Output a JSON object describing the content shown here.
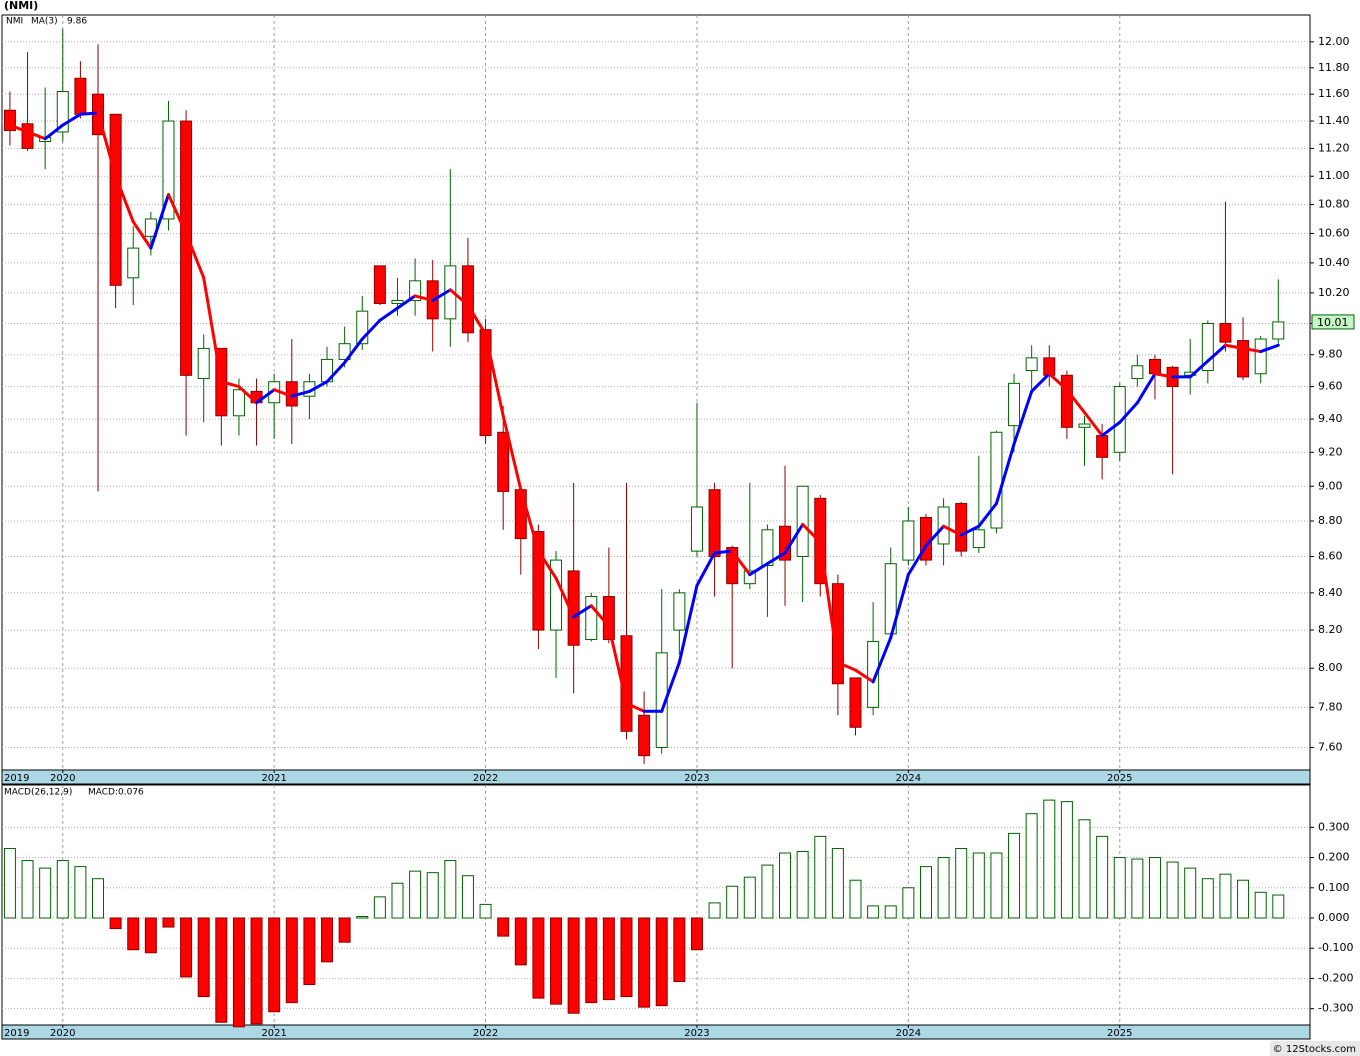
{
  "chart_data": [
    {
      "type": "candlestick",
      "title": "(NMI)",
      "log_scale": true,
      "grid": true,
      "series": [
        {
          "name": "NMI",
          "color": "#006400",
          "down_color": "#ff0000",
          "open": [
            11.48,
            11.38,
            11.25,
            11.32,
            11.72,
            11.6,
            11.45,
            10.3,
            10.58,
            10.7,
            11.4,
            9.65,
            9.84,
            9.42,
            9.57,
            9.5,
            9.63,
            9.54,
            9.63,
            9.77,
            9.87,
            10.38,
            10.13,
            10.15,
            10.28,
            10.03,
            10.38,
            9.96,
            9.32,
            8.98,
            8.74,
            8.2,
            8.52,
            8.15,
            8.38,
            8.17,
            7.76,
            7.6,
            8.2,
            8.63,
            8.98,
            8.65,
            8.45,
            8.55,
            8.77,
            8.6,
            8.93,
            8.45,
            7.95,
            7.8,
            8.18,
            8.58,
            8.82,
            8.67,
            8.9,
            8.65,
            8.76,
            9.36,
            9.7,
            9.78,
            9.67,
            9.35,
            9.3,
            9.2,
            9.65,
            9.77,
            9.72,
            9.67,
            9.7,
            10.0,
            9.89,
            9.68,
            9.9
          ],
          "high": [
            11.62,
            11.92,
            11.65,
            12.1,
            11.85,
            11.98,
            11.45,
            10.65,
            10.75,
            11.55,
            11.48,
            9.93,
            9.84,
            9.65,
            9.65,
            9.68,
            9.9,
            9.68,
            9.85,
            9.98,
            10.18,
            10.38,
            10.3,
            10.43,
            10.42,
            11.05,
            10.57,
            10.03,
            9.48,
            9.0,
            8.78,
            8.63,
            9.02,
            8.4,
            8.65,
            9.02,
            7.88,
            8.42,
            8.42,
            9.5,
            9.02,
            8.66,
            9.02,
            8.78,
            9.12,
            9.0,
            8.95,
            8.5,
            7.95,
            8.35,
            8.65,
            8.88,
            8.84,
            8.93,
            8.91,
            9.18,
            9.33,
            9.68,
            9.86,
            9.86,
            9.7,
            9.42,
            9.37,
            9.62,
            9.8,
            9.8,
            9.73,
            9.9,
            10.02,
            10.82,
            10.04,
            9.92,
            10.29
          ],
          "low": [
            11.22,
            11.18,
            11.05,
            11.25,
            11.42,
            8.97,
            10.1,
            10.12,
            10.45,
            10.62,
            9.3,
            9.38,
            9.24,
            9.3,
            9.24,
            9.28,
            9.25,
            9.4,
            9.6,
            9.72,
            9.83,
            10.12,
            10.05,
            10.05,
            9.82,
            9.85,
            9.88,
            9.25,
            8.75,
            8.5,
            8.1,
            7.95,
            7.87,
            8.14,
            8.13,
            7.64,
            7.52,
            7.57,
            8.07,
            8.6,
            8.38,
            8.0,
            8.42,
            8.27,
            8.33,
            8.35,
            8.38,
            7.76,
            7.66,
            7.76,
            8.17,
            8.55,
            8.55,
            8.55,
            8.6,
            8.62,
            8.73,
            9.2,
            9.58,
            9.6,
            9.28,
            9.12,
            9.04,
            9.15,
            9.6,
            9.52,
            9.07,
            9.55,
            9.62,
            9.82,
            9.64,
            9.62,
            9.87
          ],
          "close": [
            11.33,
            11.2,
            11.28,
            11.62,
            11.45,
            11.3,
            10.25,
            10.5,
            10.7,
            11.4,
            9.67,
            9.84,
            9.42,
            9.58,
            9.5,
            9.63,
            9.48,
            9.63,
            9.77,
            9.87,
            10.08,
            10.13,
            10.15,
            10.28,
            10.03,
            10.38,
            9.94,
            9.3,
            8.97,
            8.7,
            8.2,
            8.58,
            8.12,
            8.38,
            8.15,
            7.68,
            7.56,
            8.08,
            8.4,
            8.88,
            8.6,
            8.45,
            8.52,
            8.75,
            8.58,
            9.0,
            8.45,
            7.92,
            7.7,
            8.14,
            8.56,
            8.8,
            8.58,
            8.88,
            8.63,
            8.75,
            9.32,
            9.62,
            9.78,
            9.67,
            9.35,
            9.37,
            9.17,
            9.6,
            9.73,
            9.68,
            9.6,
            9.69,
            10.0,
            9.88,
            9.66,
            9.9,
            10.01
          ]
        },
        {
          "name": "MA(3)",
          "color": "#0000ff",
          "down_color": "#ff0000",
          "values": [
            11.37,
            11.32,
            11.27,
            11.37,
            11.45,
            11.46,
            11.0,
            10.68,
            10.5,
            10.87,
            10.6,
            10.3,
            9.63,
            9.6,
            9.5,
            9.58,
            9.54,
            9.57,
            9.63,
            9.75,
            9.9,
            10.02,
            10.1,
            10.18,
            10.15,
            10.22,
            10.12,
            9.93,
            9.42,
            8.98,
            8.63,
            8.48,
            8.27,
            8.33,
            8.22,
            7.82,
            7.78,
            7.78,
            8.03,
            8.44,
            8.62,
            8.63,
            8.5,
            8.56,
            8.62,
            8.78,
            8.68,
            8.03,
            7.99,
            7.93,
            8.16,
            8.5,
            8.66,
            8.77,
            8.72,
            8.77,
            8.9,
            9.25,
            9.57,
            9.68,
            9.58,
            9.44,
            9.3,
            9.38,
            9.5,
            9.68,
            9.66,
            9.66,
            9.76,
            9.86,
            9.84,
            9.82,
            9.86
          ]
        }
      ],
      "xlim": [
        -0.45,
        73.8
      ],
      "xticks": [
        {
          "value": -0.45,
          "label": "2019"
        },
        {
          "value": 3,
          "label": "2020"
        },
        {
          "value": 15,
          "label": "2021"
        },
        {
          "value": 27,
          "label": "2022"
        },
        {
          "value": 39,
          "label": "2023"
        },
        {
          "value": 51,
          "label": "2024"
        },
        {
          "value": 63,
          "label": "2025"
        }
      ],
      "ylim": [
        7.49,
        12.21
      ],
      "yticks": [
        {
          "value": 7.6,
          "label": "7.60"
        },
        {
          "value": 7.8,
          "label": "7.80"
        },
        {
          "value": 8,
          "label": "8.00"
        },
        {
          "value": 8.2,
          "label": "8.20"
        },
        {
          "value": 8.4,
          "label": "8.40"
        },
        {
          "value": 8.6,
          "label": "8.60"
        },
        {
          "value": 8.8,
          "label": "8.80"
        },
        {
          "value": 9,
          "label": "9.00"
        },
        {
          "value": 9.2,
          "label": "9.20"
        },
        {
          "value": 9.4,
          "label": "9.40"
        },
        {
          "value": 9.6,
          "label": "9.60"
        },
        {
          "value": 9.8,
          "label": "9.80"
        },
        {
          "value": 10,
          "label": "10.00"
        },
        {
          "value": 10.2,
          "label": "10.20"
        },
        {
          "value": 10.4,
          "label": "10.40"
        },
        {
          "value": 10.6,
          "label": "10.60"
        },
        {
          "value": 10.8,
          "label": "10.80"
        },
        {
          "value": 11,
          "label": "11.00"
        },
        {
          "value": 11.2,
          "label": "11.20"
        },
        {
          "value": 11.4,
          "label": "11.40"
        },
        {
          "value": 11.6,
          "label": "11.60"
        },
        {
          "value": 11.8,
          "label": "11.80"
        },
        {
          "value": 12,
          "label": "12.00"
        }
      ]
    },
    {
      "type": "macd",
      "title": "MACD(26,12,9)",
      "legend_text": "MACD:0.076",
      "grid": true,
      "series": [
        {
          "name": "MACD",
          "color": "#006400",
          "down_color": "#ff0000",
          "values": [
            0.23,
            0.19,
            0.165,
            0.19,
            0.17,
            0.13,
            -0.035,
            -0.105,
            -0.115,
            -0.03,
            -0.195,
            -0.26,
            -0.345,
            -0.36,
            -0.35,
            -0.31,
            -0.28,
            -0.22,
            -0.145,
            -0.08,
            0.005,
            0.07,
            0.115,
            0.155,
            0.15,
            0.19,
            0.14,
            0.045,
            -0.06,
            -0.155,
            -0.265,
            -0.285,
            -0.315,
            -0.28,
            -0.27,
            -0.26,
            -0.295,
            -0.29,
            -0.21,
            -0.105,
            0.05,
            0.105,
            0.135,
            0.175,
            0.215,
            0.22,
            0.27,
            0.23,
            0.125,
            0.04,
            0.04,
            0.1,
            0.17,
            0.2,
            0.23,
            0.215,
            0.215,
            0.28,
            0.345,
            0.39,
            0.385,
            0.325,
            0.27,
            0.2,
            0.195,
            0.2,
            0.185,
            0.165,
            0.13,
            0.145,
            0.125,
            0.085,
            0.076
          ]
        }
      ],
      "ylim": [
        -0.354,
        0.44
      ],
      "yticks": [
        {
          "value": -0.3,
          "label": "-0.300"
        },
        {
          "value": -0.2,
          "label": "-0.200"
        },
        {
          "value": -0.1,
          "label": "-0.100"
        },
        {
          "value": 0,
          "label": "0.000"
        },
        {
          "value": 0.1,
          "label": "0.100"
        },
        {
          "value": 0.2,
          "label": "0.200"
        },
        {
          "value": 0.3,
          "label": "0.300"
        }
      ]
    }
  ],
  "footer": "© 12Stocks.com"
}
